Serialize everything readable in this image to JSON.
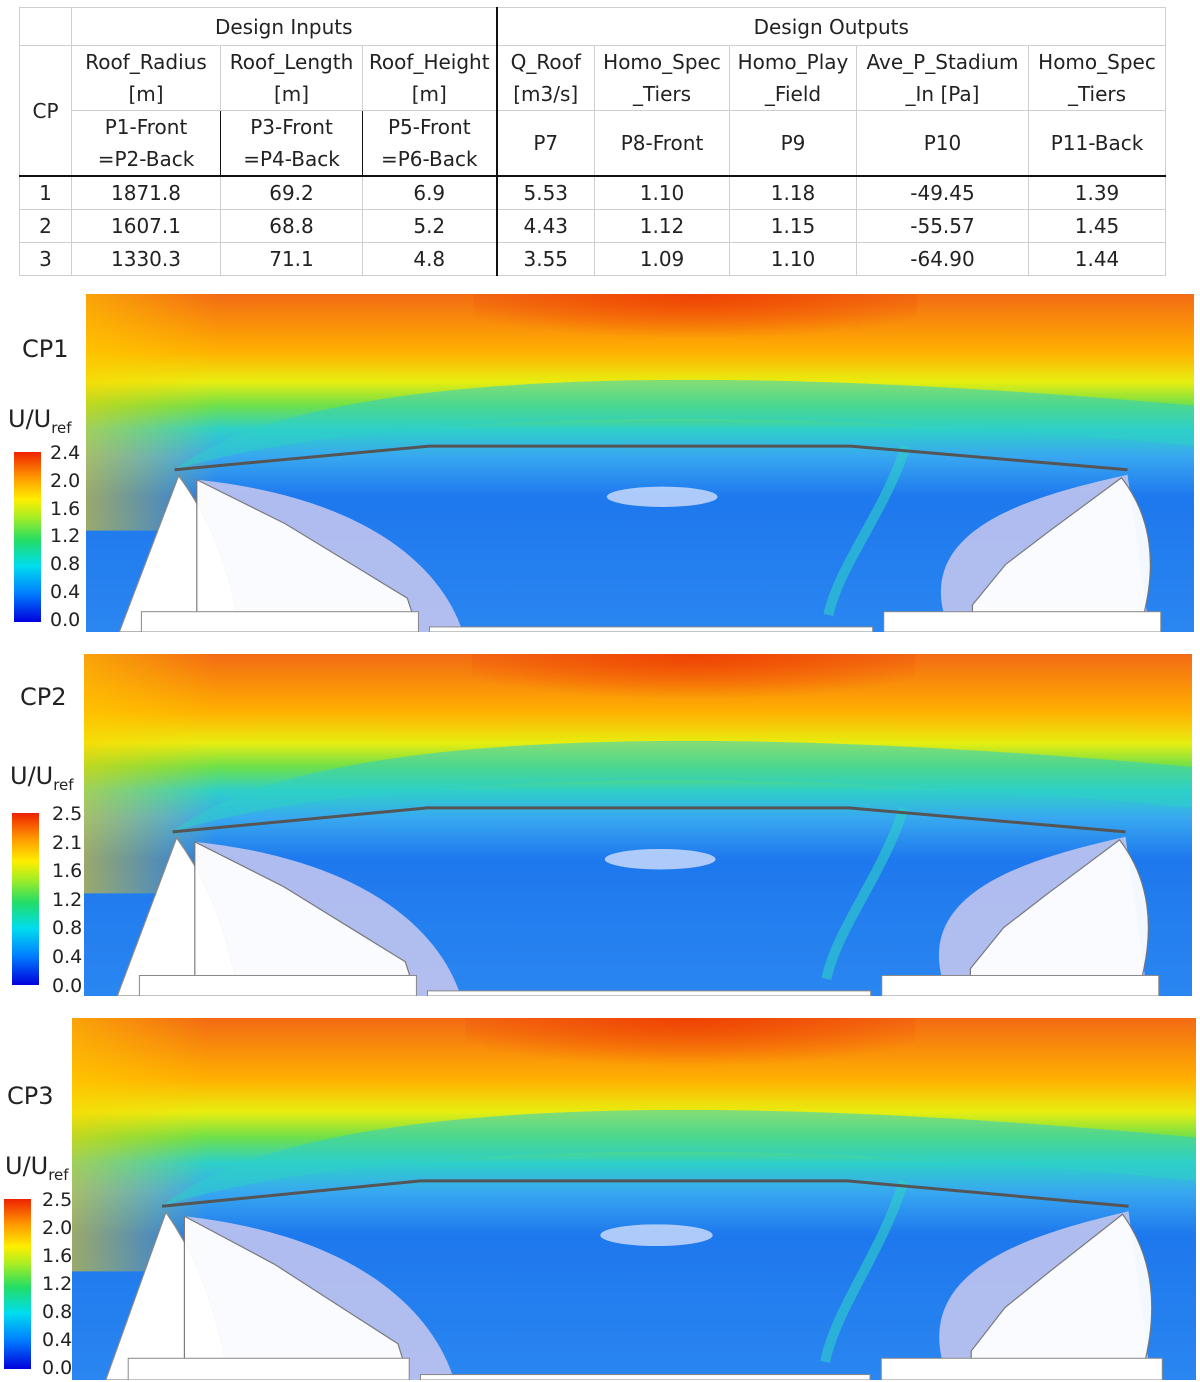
{
  "table": {
    "group_headers": {
      "cp": "CP",
      "inputs": "Design Inputs",
      "outputs": "Design Outputs"
    },
    "columns": [
      {
        "name_lines": [
          "Roof_Radius",
          "[m]"
        ],
        "param_lines": [
          "P1-Front",
          "=P2-Back"
        ]
      },
      {
        "name_lines": [
          "Roof_Length",
          "[m]"
        ],
        "param_lines": [
          "P3-Front",
          "=P4-Back"
        ]
      },
      {
        "name_lines": [
          "Roof_Height",
          "[m]"
        ],
        "param_lines": [
          "P5-Front",
          "=P6-Back"
        ]
      },
      {
        "name_lines": [
          "Q_Roof",
          "[m3/s]"
        ],
        "param_lines": [
          "P7"
        ]
      },
      {
        "name_lines": [
          "Homo_Spec",
          "_Tiers"
        ],
        "param_lines": [
          "P8-Front"
        ]
      },
      {
        "name_lines": [
          "Homo_Play",
          "_Field"
        ],
        "param_lines": [
          "P9"
        ]
      },
      {
        "name_lines": [
          "Ave_P_Stadium",
          "_In [Pa]"
        ],
        "param_lines": [
          "P10"
        ]
      },
      {
        "name_lines": [
          "Homo_Spec",
          "_Tiers"
        ],
        "param_lines": [
          "P11-Back"
        ]
      }
    ],
    "rows": [
      [
        "1",
        "1871.8",
        "69.2",
        "6.9",
        "5.53",
        "1.10",
        "1.18",
        "-49.45",
        "1.39"
      ],
      [
        "2",
        "1607.1",
        "68.8",
        "5.2",
        "4.43",
        "1.12",
        "1.15",
        "-55.57",
        "1.45"
      ],
      [
        "3",
        "1330.3",
        "71.1",
        "4.8",
        "3.55",
        "1.09",
        "1.10",
        "-64.90",
        "1.44"
      ]
    ]
  },
  "panels": [
    {
      "label": "CP1",
      "legend_title": "U/U",
      "legend_sub": "ref",
      "ticks": [
        "2.4",
        "2.0",
        "1.6",
        "1.2",
        "0.8",
        "0.4",
        "0.0"
      ]
    },
    {
      "label": "CP2",
      "legend_title": "U/U",
      "legend_sub": "ref",
      "ticks": [
        "2.5",
        "2.1",
        "1.6",
        "1.2",
        "0.8",
        "0.4",
        "0.0"
      ]
    },
    {
      "label": "CP3",
      "legend_title": "U/U",
      "legend_sub": "ref",
      "ticks": [
        "2.5",
        "2.0",
        "1.6",
        "1.2",
        "0.8",
        "0.4",
        "0.0"
      ]
    }
  ],
  "colors": {
    "flow_high": "#f05a10",
    "flow_mid": "#2ed0c8",
    "flow_low": "#1e78ee",
    "wake": "#c9c8ee",
    "structure": "#ffffff"
  }
}
